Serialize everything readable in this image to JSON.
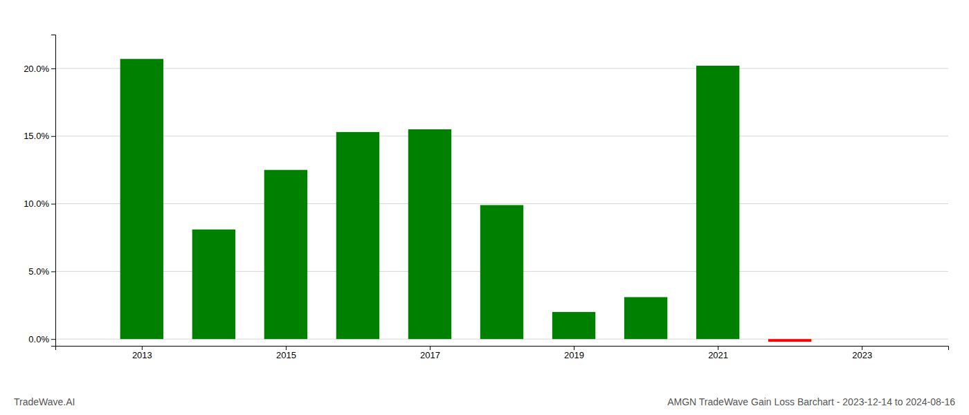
{
  "chart_data": {
    "type": "bar",
    "title": "AMGN TradeWave Gain Loss Barchart - 2023-12-14 to 2024-08-16",
    "annotations": [
      "TradeWave.AI"
    ],
    "x": [
      2013,
      2014,
      2015,
      2016,
      2017,
      2018,
      2019,
      2020,
      2021,
      2022,
      2023
    ],
    "values": [
      0.207,
      0.081,
      0.125,
      0.153,
      0.155,
      0.099,
      0.02,
      0.031,
      0.202,
      -0.002,
      0.0
    ],
    "colors": [
      "#008000",
      "#008000",
      "#008000",
      "#008000",
      "#008000",
      "#008000",
      "#008000",
      "#008000",
      "#008000",
      "#ff0000",
      "#ffffff"
    ],
    "xlim": [
      2011.8,
      2024.2
    ],
    "xticks": [
      2013,
      2015,
      2017,
      2019,
      2021,
      2023
    ],
    "ylim": [
      -0.005,
      0.225
    ],
    "yticks": [
      {
        "value": 0.0,
        "label": "0.0%"
      },
      {
        "value": 0.05,
        "label": "5.0%"
      },
      {
        "value": 0.1,
        "label": "10.0%"
      },
      {
        "value": 0.15,
        "label": "15.0%"
      },
      {
        "value": 0.2,
        "label": "20.0%"
      }
    ],
    "grid": "y"
  }
}
